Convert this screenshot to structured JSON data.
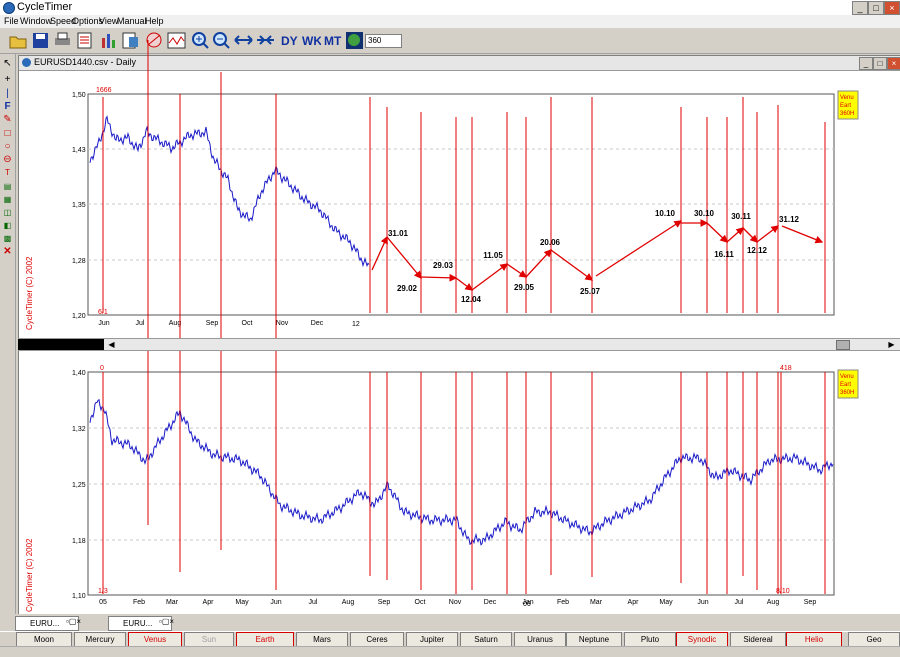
{
  "app": {
    "title": "CycleTimer"
  },
  "menu": [
    "File",
    "Window",
    "Speed",
    "Options",
    "View",
    "Manual",
    "Help"
  ],
  "toolbar": {
    "zoom_value": "360"
  },
  "window": {
    "title": "EURUSD1440.csv - Daily"
  },
  "top_chart": {
    "y_ticks": [
      "1,50",
      "1,43",
      "1,35",
      "1,28",
      "1,20"
    ],
    "x_ticks": [
      "Jun",
      "Jul",
      "Aug",
      "Sep",
      "Oct",
      "Nov",
      "Dec"
    ],
    "year_label": "12",
    "corner_top_label": "1666",
    "corner_bottom_label": "6/1",
    "legend": [
      "Venu",
      "Eart",
      "360H"
    ],
    "copyright": "CycleTimer (C) 2002",
    "projections": [
      "31.01",
      "29.02",
      "29.03",
      "12.04",
      "11.05",
      "29.05",
      "20.06",
      "25.07",
      "10.10",
      "30.10",
      "16.11",
      "30.11",
      "12.12",
      "31.12"
    ]
  },
  "bottom_chart": {
    "y_ticks": [
      "1,40",
      "1,32",
      "1,25",
      "1,18",
      "1,10"
    ],
    "x_ticks": [
      "05",
      "Feb",
      "Mar",
      "Apr",
      "May",
      "Jun",
      "Jul",
      "Aug",
      "Sep",
      "Oct",
      "Nov",
      "Dec",
      "Jan",
      "Feb",
      "Mar",
      "Apr",
      "May",
      "Jun",
      "Jul",
      "Aug",
      "Sep"
    ],
    "year_label": "06",
    "corner_top_label": "0",
    "corner_bottom_label": "1/3",
    "right_top_label": "418",
    "right_bottom_label": "8/10",
    "legend": [
      "Venu",
      "Eart",
      "360H"
    ],
    "copyright": "CycleTimer (C) 2002"
  },
  "window_tabs": [
    "EURU...",
    "EURU..."
  ],
  "planets": [
    "Moon",
    "Mercury",
    "Venus",
    "Sun",
    "Earth",
    "Mars",
    "Ceres",
    "Jupiter",
    "Saturn",
    "Uranus",
    "Neptune",
    "Pluto",
    "Synodic",
    "Sidereal",
    "Helio",
    "Geo"
  ],
  "colors": {
    "cycle_line": "#e00000",
    "price": "#1818c8",
    "legend_bg": "#ffff00"
  }
}
